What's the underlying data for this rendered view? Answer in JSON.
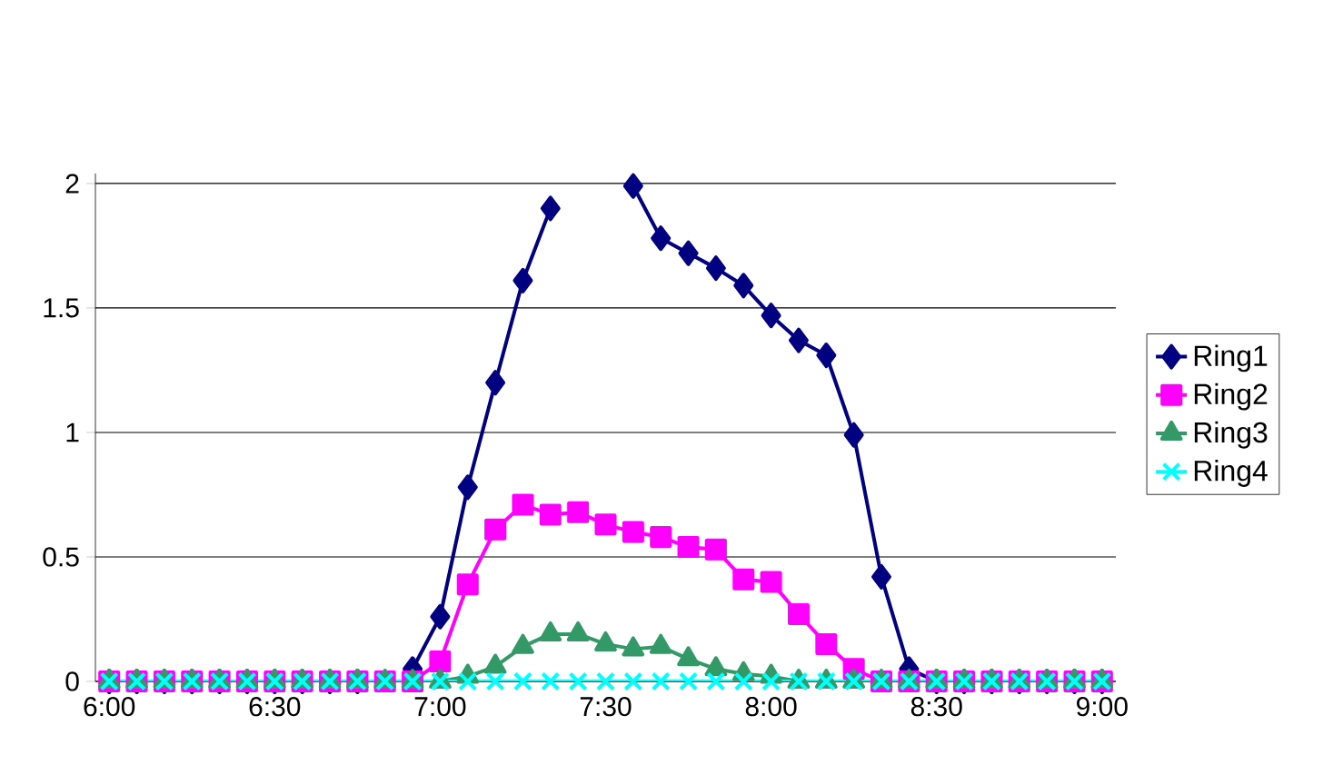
{
  "chart_data": {
    "type": "line",
    "x": [
      6,
      6.0833,
      6.1667,
      6.25,
      6.3333,
      6.4167,
      6.5,
      6.5833,
      6.6667,
      6.75,
      6.8333,
      6.9167,
      7,
      7.0833,
      7.1667,
      7.25,
      7.3333,
      7.4167,
      7.5,
      7.5833,
      7.6667,
      7.75,
      7.8333,
      7.9167,
      8,
      8.0833,
      8.1667,
      8.25,
      8.3333,
      8.4167,
      8.5,
      8.5833,
      8.6667,
      8.75,
      8.8333,
      8.9167,
      9
    ],
    "series": [
      {
        "name": "Ring1",
        "color": "#000080",
        "marker": "diamond",
        "values": [
          0,
          0,
          0,
          0,
          0,
          0,
          0,
          0,
          0,
          0,
          null,
          0.05,
          0.26,
          0.78,
          1.2,
          1.61,
          1.9,
          null,
          null,
          1.99,
          1.78,
          1.72,
          1.66,
          1.59,
          1.47,
          1.37,
          1.31,
          0.99,
          0.42,
          0.05,
          0,
          0,
          0,
          0,
          0,
          0,
          0
        ]
      },
      {
        "name": "Ring2",
        "color": "#ff00ff",
        "marker": "square",
        "values": [
          0,
          0,
          0,
          0,
          0,
          0,
          0,
          0,
          0,
          0,
          0,
          0,
          0.08,
          0.39,
          0.61,
          0.71,
          0.67,
          0.68,
          0.63,
          0.6,
          0.58,
          0.54,
          0.53,
          0.41,
          0.4,
          0.27,
          0.15,
          0.05,
          0,
          0,
          0,
          0,
          0,
          0,
          0,
          0,
          0
        ]
      },
      {
        "name": "Ring3",
        "color": "#339966",
        "marker": "triangle",
        "values": [
          0,
          0,
          0,
          0,
          0,
          0,
          0,
          0,
          0,
          0,
          0,
          0,
          0,
          0.02,
          0.06,
          0.14,
          0.19,
          0.19,
          0.15,
          0.13,
          0.14,
          0.09,
          0.05,
          0.03,
          0.02,
          0,
          0,
          0,
          0,
          0,
          0,
          0,
          0,
          0,
          0,
          0,
          0
        ]
      },
      {
        "name": "Ring4",
        "color": "#00ffff",
        "marker": "cross",
        "values": [
          0,
          0,
          0,
          0,
          0,
          0,
          0,
          0,
          0,
          0,
          0,
          0,
          0,
          0,
          0,
          0,
          0,
          0,
          0,
          0,
          0,
          0,
          0,
          0,
          0,
          0,
          0,
          0,
          0,
          0,
          0,
          0,
          0,
          0,
          0,
          0,
          0
        ]
      }
    ],
    "xlim": [
      5.9583,
      9.0417
    ],
    "xticks": [
      {
        "value": 6,
        "label": "6:00"
      },
      {
        "value": 6.5,
        "label": "6:30"
      },
      {
        "value": 7,
        "label": "7:00"
      },
      {
        "value": 7.5,
        "label": "7:30"
      },
      {
        "value": 8,
        "label": "8:00"
      },
      {
        "value": 8.5,
        "label": "8:30"
      },
      {
        "value": 9,
        "label": "9:00"
      }
    ],
    "ylim": [
      0,
      2.04
    ],
    "yticks": [
      0,
      0.5,
      1,
      1.5,
      2
    ],
    "grid": "y",
    "legend": "right",
    "line_style": "solid"
  }
}
